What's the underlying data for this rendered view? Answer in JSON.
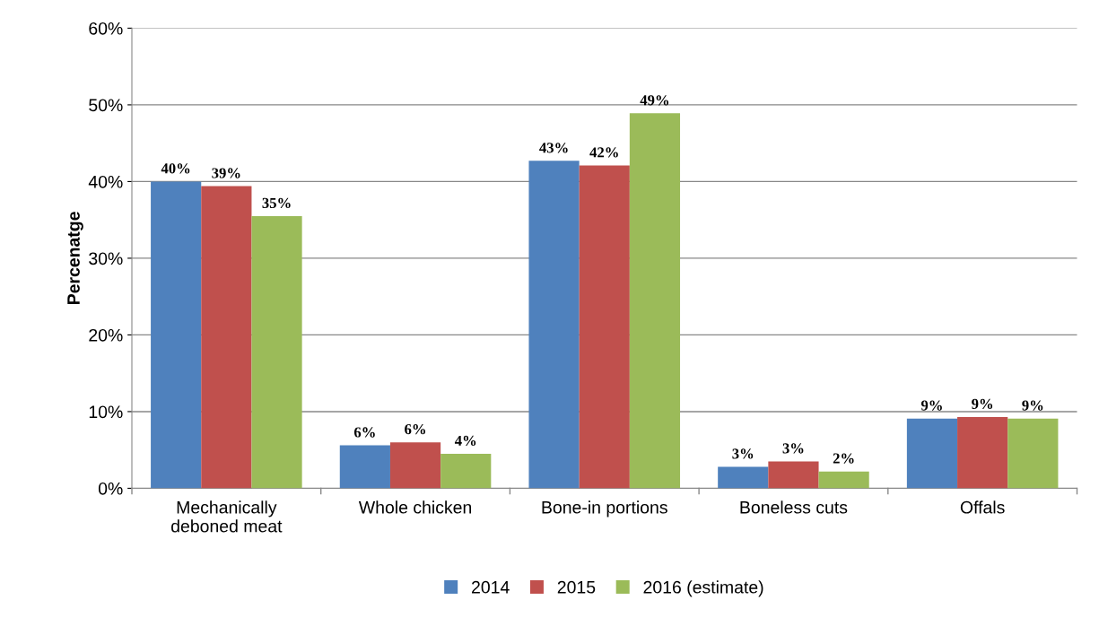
{
  "chart_data": {
    "type": "bar",
    "ylabel": "Percenatge",
    "categories": [
      "Mechanically\ndeboned meat",
      "Whole chicken",
      "Bone-in portions",
      "Boneless cuts",
      "Offals"
    ],
    "series": [
      {
        "name": "2014",
        "color": "#4f81bd",
        "values": [
          40.0,
          5.6,
          42.7,
          2.8,
          9.1
        ],
        "value_labels": [
          "40%",
          "6%",
          "43%",
          "3%",
          "9%"
        ]
      },
      {
        "name": "2015",
        "color": "#c0504d",
        "values": [
          39.4,
          6.0,
          42.1,
          3.5,
          9.3
        ],
        "value_labels": [
          "39%",
          "6%",
          "42%",
          "3%",
          "9%"
        ]
      },
      {
        "name": "2016 (estimate)",
        "color": "#9bbb59",
        "values": [
          35.5,
          4.5,
          48.9,
          2.2,
          9.1
        ],
        "value_labels": [
          "35%",
          "4%",
          "49%",
          "2%",
          "9%"
        ]
      }
    ],
    "ylim": [
      0,
      60
    ],
    "yticks": [
      {
        "value": 0,
        "label": "0%"
      },
      {
        "value": 10,
        "label": "10%"
      },
      {
        "value": 20,
        "label": "20%"
      },
      {
        "value": 30,
        "label": "30%"
      },
      {
        "value": 40,
        "label": "40%"
      },
      {
        "value": 50,
        "label": "50%"
      },
      {
        "value": 60,
        "label": "60%"
      }
    ],
    "grid": "y",
    "legend": "bottom"
  }
}
